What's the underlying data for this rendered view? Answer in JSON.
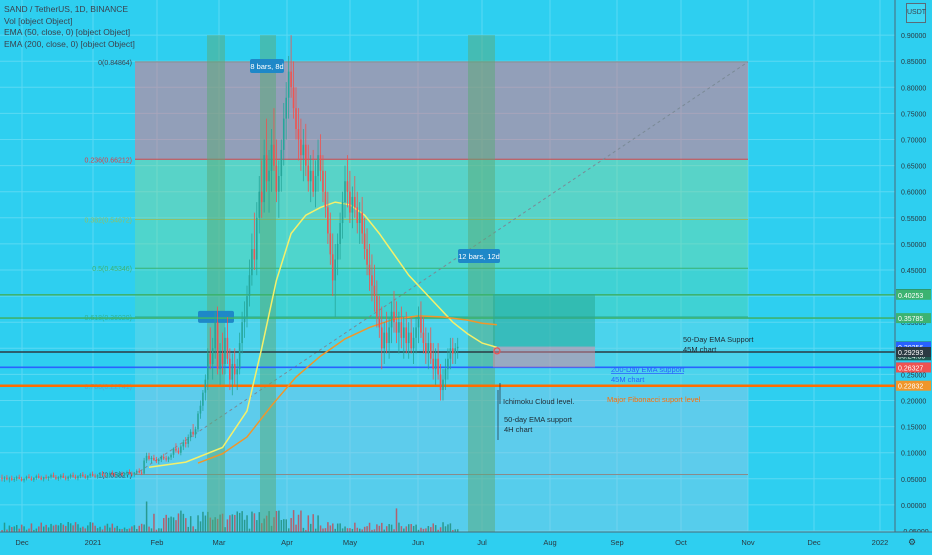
{
  "header": {
    "symbol_line": "SAND / TetherUS, 1D, BINANCE",
    "vol_line": "Vol [object Object]",
    "ema50_line": "EMA (50, close, 0) [object Object]",
    "ema200_line": "EMA (200, close, 0) [object Object]",
    "currency": "USDT"
  },
  "colors": {
    "background": "#2ecff0",
    "grid": "#5bd9f3",
    "candle_up": "#26a69a",
    "candle_down": "#ef5350",
    "ema50": "#f5f06a",
    "ema200": "#f0962a",
    "fib_red": "#d9414a",
    "fib_green": "#3cb371",
    "blue_line": "#2962ff",
    "orange_line": "#ff6d00",
    "dark_line": "#2b3a42"
  },
  "chart_data": {
    "type": "candlestick",
    "y_axis": {
      "min": -0.05,
      "max": 0.95,
      "ticks": [
        "0.90000",
        "0.85000",
        "0.80000",
        "0.75000",
        "0.70000",
        "0.65000",
        "0.60000",
        "0.55000",
        "0.50000",
        "0.45000",
        "0.40000",
        "0.35000",
        "0.30000",
        "0.25000",
        "0.20000",
        "0.15000",
        "0.10000",
        "0.05000",
        "0.00000",
        "-0.05000"
      ]
    },
    "x_axis": {
      "labels": [
        "Dec",
        "2021",
        "Feb",
        "Mar",
        "Apr",
        "May",
        "Jun",
        "Jul",
        "Aug",
        "Sep",
        "Oct",
        "Nov",
        "Dec",
        "2022"
      ]
    },
    "price_labels": [
      {
        "value": 0.40387,
        "text": "0.40387",
        "color": "#2a8a5e"
      },
      {
        "value": 0.40253,
        "text": "0.40253",
        "color": "#3cb371"
      },
      {
        "value": 0.35785,
        "text": "0.35785",
        "color": "#3cb371"
      },
      {
        "value": 0.30334,
        "text": "0.30334",
        "color": "#1e5a50"
      },
      {
        "value": 0.2865,
        "text": "06:24:50",
        "color": "#1e5a50"
      },
      {
        "value": 0.30256,
        "text": "0.30256",
        "color": "#2962ff"
      },
      {
        "value": 0.29293,
        "text": "0.29293",
        "color": "#2b3a42"
      },
      {
        "value": 0.26351,
        "text": "0.26351",
        "color": "#2962ff"
      },
      {
        "value": 0.26327,
        "text": "0.26327",
        "color": "#ef5350"
      },
      {
        "value": 0.22832,
        "text": "0.22832",
        "color": "#f0962a"
      }
    ],
    "fib_levels": [
      {
        "ratio_label": "0(0.84864)",
        "value": 0.84864
      },
      {
        "ratio_label": "0.236(0.66212)",
        "value": 0.66212
      },
      {
        "ratio_label": "0.382(0.54672)",
        "value": 0.54672
      },
      {
        "ratio_label": "0.5(0.45346)",
        "value": 0.45346
      },
      {
        "ratio_label": "0.618(0.36020)",
        "value": 0.3602
      },
      {
        "ratio_label": "0.786(0.22741)",
        "value": 0.22741
      },
      {
        "ratio_label": "1(0.05827)",
        "value": 0.05827
      }
    ],
    "horizontal_levels": [
      {
        "value": 0.40253,
        "color": "#3cb371"
      },
      {
        "value": 0.35785,
        "color": "#3cb371"
      },
      {
        "value": 0.29293,
        "color": "#2b3a42"
      },
      {
        "value": 0.26351,
        "color": "#2962ff"
      },
      {
        "value": 0.22832,
        "color": "#ff6d00"
      }
    ],
    "range_labels": [
      {
        "text": "8 bars, 8d"
      },
      {
        "text": "12 bars, 12d"
      }
    ],
    "annotations": [
      {
        "text": "50-Day EMA Support",
        "line2": "45M chart"
      },
      {
        "text": "200-Day EMA support",
        "line2": "45M chart"
      },
      {
        "text": "Major Fibonacci suport level"
      },
      {
        "text": "Ichimoku Cloud level."
      },
      {
        "text": "50-day EMA support",
        "line2": "4H chart"
      }
    ],
    "candles": [
      [
        0.052,
        0.058,
        0.045,
        0.05
      ],
      [
        0.05,
        0.055,
        0.044,
        0.052
      ],
      [
        0.052,
        0.057,
        0.047,
        0.049
      ],
      [
        0.049,
        0.054,
        0.043,
        0.051
      ],
      [
        0.051,
        0.056,
        0.046,
        0.048
      ],
      [
        0.048,
        0.053,
        0.044,
        0.05
      ],
      [
        0.05,
        0.056,
        0.046,
        0.053
      ],
      [
        0.053,
        0.058,
        0.049,
        0.05
      ],
      [
        0.05,
        0.054,
        0.045,
        0.047
      ],
      [
        0.047,
        0.052,
        0.043,
        0.05
      ],
      [
        0.05,
        0.056,
        0.047,
        0.054
      ],
      [
        0.054,
        0.059,
        0.05,
        0.051
      ],
      [
        0.051,
        0.055,
        0.046,
        0.048
      ],
      [
        0.048,
        0.053,
        0.044,
        0.052
      ],
      [
        0.052,
        0.058,
        0.048,
        0.055
      ],
      [
        0.055,
        0.06,
        0.05,
        0.052
      ],
      [
        0.052,
        0.056,
        0.047,
        0.049
      ],
      [
        0.049,
        0.054,
        0.045,
        0.053
      ],
      [
        0.053,
        0.058,
        0.049,
        0.051
      ],
      [
        0.051,
        0.055,
        0.046,
        0.054
      ],
      [
        0.054,
        0.06,
        0.05,
        0.057
      ],
      [
        0.057,
        0.062,
        0.052,
        0.053
      ],
      [
        0.053,
        0.057,
        0.048,
        0.05
      ],
      [
        0.05,
        0.055,
        0.046,
        0.053
      ],
      [
        0.053,
        0.059,
        0.049,
        0.056
      ],
      [
        0.056,
        0.061,
        0.051,
        0.052
      ],
      [
        0.052,
        0.056,
        0.047,
        0.05
      ],
      [
        0.05,
        0.056,
        0.046,
        0.054
      ],
      [
        0.054,
        0.06,
        0.05,
        0.057
      ],
      [
        0.057,
        0.062,
        0.052,
        0.054
      ],
      [
        0.054,
        0.058,
        0.049,
        0.051
      ],
      [
        0.051,
        0.057,
        0.047,
        0.055
      ],
      [
        0.055,
        0.061,
        0.051,
        0.058
      ],
      [
        0.058,
        0.063,
        0.053,
        0.055
      ],
      [
        0.055,
        0.059,
        0.05,
        0.052
      ],
      [
        0.052,
        0.057,
        0.048,
        0.056
      ],
      [
        0.056,
        0.062,
        0.052,
        0.059
      ],
      [
        0.059,
        0.064,
        0.054,
        0.056
      ],
      [
        0.056,
        0.06,
        0.051,
        0.054
      ],
      [
        0.054,
        0.059,
        0.05,
        0.057
      ],
      [
        0.057,
        0.063,
        0.053,
        0.06
      ],
      [
        0.06,
        0.065,
        0.055,
        0.057
      ],
      [
        0.057,
        0.061,
        0.052,
        0.055
      ],
      [
        0.055,
        0.06,
        0.051,
        0.058
      ],
      [
        0.058,
        0.064,
        0.054,
        0.061
      ],
      [
        0.061,
        0.066,
        0.056,
        0.058
      ],
      [
        0.058,
        0.062,
        0.053,
        0.056
      ],
      [
        0.056,
        0.061,
        0.052,
        0.059
      ],
      [
        0.059,
        0.065,
        0.055,
        0.06
      ],
      [
        0.06,
        0.064,
        0.055,
        0.057
      ],
      [
        0.057,
        0.062,
        0.053,
        0.06
      ],
      [
        0.06,
        0.066,
        0.056,
        0.063
      ],
      [
        0.063,
        0.068,
        0.058,
        0.06
      ],
      [
        0.06,
        0.064,
        0.055,
        0.058
      ],
      [
        0.058,
        0.063,
        0.054,
        0.062
      ],
      [
        0.062,
        0.068,
        0.058,
        0.065
      ],
      [
        0.065,
        0.07,
        0.06,
        0.062
      ],
      [
        0.062,
        0.066,
        0.057,
        0.06
      ],
      [
        0.06,
        0.09,
        0.058,
        0.085
      ],
      [
        0.085,
        0.1,
        0.08,
        0.094
      ],
      [
        0.094,
        0.1,
        0.085,
        0.088
      ],
      [
        0.088,
        0.094,
        0.08,
        0.09
      ],
      [
        0.09,
        0.096,
        0.084,
        0.086
      ],
      [
        0.086,
        0.092,
        0.08,
        0.084
      ],
      [
        0.084,
        0.09,
        0.078,
        0.087
      ],
      [
        0.087,
        0.095,
        0.082,
        0.092
      ],
      [
        0.092,
        0.098,
        0.086,
        0.089
      ],
      [
        0.089,
        0.094,
        0.083,
        0.087
      ],
      [
        0.087,
        0.093,
        0.082,
        0.091
      ],
      [
        0.091,
        0.099,
        0.086,
        0.096
      ],
      [
        0.096,
        0.11,
        0.09,
        0.108
      ],
      [
        0.108,
        0.118,
        0.1,
        0.104
      ],
      [
        0.104,
        0.11,
        0.097,
        0.1
      ],
      [
        0.1,
        0.115,
        0.095,
        0.112
      ],
      [
        0.112,
        0.125,
        0.105,
        0.12
      ],
      [
        0.12,
        0.13,
        0.11,
        0.117
      ],
      [
        0.117,
        0.135,
        0.11,
        0.13
      ],
      [
        0.13,
        0.145,
        0.122,
        0.14
      ],
      [
        0.14,
        0.155,
        0.13,
        0.135
      ],
      [
        0.135,
        0.15,
        0.128,
        0.145
      ],
      [
        0.145,
        0.18,
        0.14,
        0.175
      ],
      [
        0.175,
        0.2,
        0.165,
        0.19
      ],
      [
        0.19,
        0.22,
        0.18,
        0.215
      ],
      [
        0.215,
        0.25,
        0.2,
        0.24
      ],
      [
        0.24,
        0.3,
        0.22,
        0.29
      ],
      [
        0.29,
        0.34,
        0.26,
        0.27
      ],
      [
        0.27,
        0.32,
        0.24,
        0.3
      ],
      [
        0.3,
        0.37,
        0.28,
        0.35
      ],
      [
        0.35,
        0.38,
        0.25,
        0.26
      ],
      [
        0.26,
        0.31,
        0.23,
        0.29
      ],
      [
        0.29,
        0.33,
        0.25,
        0.27
      ],
      [
        0.27,
        0.34,
        0.25,
        0.32
      ],
      [
        0.32,
        0.36,
        0.27,
        0.28
      ],
      [
        0.28,
        0.3,
        0.22,
        0.24
      ],
      [
        0.24,
        0.29,
        0.21,
        0.27
      ],
      [
        0.27,
        0.3,
        0.23,
        0.25
      ],
      [
        0.25,
        0.28,
        0.22,
        0.26
      ],
      [
        0.26,
        0.33,
        0.25,
        0.31
      ],
      [
        0.31,
        0.37,
        0.29,
        0.35
      ],
      [
        0.35,
        0.39,
        0.32,
        0.36
      ],
      [
        0.36,
        0.42,
        0.34,
        0.4
      ],
      [
        0.4,
        0.47,
        0.38,
        0.44
      ],
      [
        0.44,
        0.52,
        0.42,
        0.49
      ],
      [
        0.49,
        0.56,
        0.45,
        0.47
      ],
      [
        0.47,
        0.58,
        0.44,
        0.55
      ],
      [
        0.55,
        0.63,
        0.52,
        0.6
      ],
      [
        0.6,
        0.66,
        0.55,
        0.58
      ],
      [
        0.58,
        0.7,
        0.56,
        0.67
      ],
      [
        0.67,
        0.74,
        0.6,
        0.62
      ],
      [
        0.62,
        0.68,
        0.56,
        0.64
      ],
      [
        0.64,
        0.72,
        0.6,
        0.69
      ],
      [
        0.69,
        0.76,
        0.64,
        0.65
      ],
      [
        0.65,
        0.7,
        0.58,
        0.6
      ],
      [
        0.6,
        0.66,
        0.55,
        0.63
      ],
      [
        0.63,
        0.7,
        0.6,
        0.68
      ],
      [
        0.68,
        0.77,
        0.65,
        0.74
      ],
      [
        0.74,
        0.81,
        0.7,
        0.78
      ],
      [
        0.78,
        0.86,
        0.74,
        0.83
      ],
      [
        0.83,
        0.9,
        0.78,
        0.8
      ],
      [
        0.8,
        0.85,
        0.74,
        0.76
      ],
      [
        0.76,
        0.8,
        0.7,
        0.72
      ],
      [
        0.72,
        0.76,
        0.66,
        0.7
      ],
      [
        0.7,
        0.74,
        0.64,
        0.67
      ],
      [
        0.67,
        0.72,
        0.62,
        0.69
      ],
      [
        0.69,
        0.73,
        0.63,
        0.65
      ],
      [
        0.65,
        0.69,
        0.6,
        0.62
      ],
      [
        0.62,
        0.67,
        0.58,
        0.64
      ],
      [
        0.64,
        0.68,
        0.59,
        0.6
      ],
      [
        0.6,
        0.66,
        0.57,
        0.63
      ],
      [
        0.63,
        0.7,
        0.6,
        0.67
      ],
      [
        0.67,
        0.71,
        0.62,
        0.64
      ],
      [
        0.64,
        0.67,
        0.58,
        0.6
      ],
      [
        0.6,
        0.64,
        0.55,
        0.57
      ],
      [
        0.57,
        0.6,
        0.5,
        0.52
      ],
      [
        0.52,
        0.56,
        0.46,
        0.48
      ],
      [
        0.48,
        0.52,
        0.4,
        0.43
      ],
      [
        0.43,
        0.5,
        0.36,
        0.47
      ],
      [
        0.47,
        0.52,
        0.44,
        0.5
      ],
      [
        0.5,
        0.56,
        0.47,
        0.54
      ],
      [
        0.54,
        0.6,
        0.51,
        0.58
      ],
      [
        0.58,
        0.65,
        0.55,
        0.62
      ],
      [
        0.62,
        0.67,
        0.57,
        0.6
      ],
      [
        0.6,
        0.64,
        0.54,
        0.56
      ],
      [
        0.56,
        0.61,
        0.53,
        0.59
      ],
      [
        0.59,
        0.63,
        0.55,
        0.57
      ],
      [
        0.57,
        0.6,
        0.52,
        0.54
      ],
      [
        0.54,
        0.58,
        0.5,
        0.56
      ],
      [
        0.56,
        0.59,
        0.5,
        0.52
      ],
      [
        0.52,
        0.55,
        0.47,
        0.49
      ],
      [
        0.49,
        0.53,
        0.44,
        0.46
      ],
      [
        0.46,
        0.5,
        0.41,
        0.44
      ],
      [
        0.44,
        0.48,
        0.39,
        0.42
      ],
      [
        0.42,
        0.46,
        0.37,
        0.4
      ],
      [
        0.4,
        0.43,
        0.34,
        0.36
      ],
      [
        0.36,
        0.4,
        0.32,
        0.34
      ],
      [
        0.34,
        0.38,
        0.26,
        0.3
      ],
      [
        0.3,
        0.35,
        0.27,
        0.33
      ],
      [
        0.33,
        0.37,
        0.29,
        0.31
      ],
      [
        0.31,
        0.36,
        0.28,
        0.34
      ],
      [
        0.34,
        0.39,
        0.31,
        0.37
      ],
      [
        0.37,
        0.41,
        0.33,
        0.35
      ],
      [
        0.35,
        0.39,
        0.31,
        0.33
      ],
      [
        0.33,
        0.37,
        0.29,
        0.35
      ],
      [
        0.35,
        0.38,
        0.3,
        0.32
      ],
      [
        0.32,
        0.36,
        0.28,
        0.34
      ],
      [
        0.34,
        0.37,
        0.29,
        0.31
      ],
      [
        0.31,
        0.35,
        0.28,
        0.33
      ],
      [
        0.33,
        0.36,
        0.29,
        0.3
      ],
      [
        0.3,
        0.34,
        0.27,
        0.32
      ],
      [
        0.32,
        0.36,
        0.29,
        0.34
      ],
      [
        0.34,
        0.38,
        0.31,
        0.36
      ],
      [
        0.36,
        0.39,
        0.32,
        0.33
      ],
      [
        0.33,
        0.36,
        0.29,
        0.31
      ],
      [
        0.31,
        0.34,
        0.27,
        0.29
      ],
      [
        0.29,
        0.33,
        0.26,
        0.31
      ],
      [
        0.31,
        0.34,
        0.27,
        0.28
      ],
      [
        0.28,
        0.31,
        0.24,
        0.26
      ],
      [
        0.26,
        0.3,
        0.23,
        0.28
      ],
      [
        0.28,
        0.31,
        0.24,
        0.25
      ],
      [
        0.25,
        0.27,
        0.2,
        0.22
      ],
      [
        0.22,
        0.26,
        0.2,
        0.24
      ],
      [
        0.24,
        0.28,
        0.22,
        0.26
      ],
      [
        0.26,
        0.3,
        0.24,
        0.28
      ],
      [
        0.28,
        0.32,
        0.26,
        0.3
      ],
      [
        0.3,
        0.32,
        0.27,
        0.29
      ],
      [
        0.29,
        0.31,
        0.27,
        0.3
      ],
      [
        0.3,
        0.32,
        0.28,
        0.303
      ]
    ],
    "ema50": [
      [
        60,
        0.072
      ],
      [
        75,
        0.082
      ],
      [
        90,
        0.11
      ],
      [
        100,
        0.18
      ],
      [
        106,
        0.3
      ],
      [
        112,
        0.43
      ],
      [
        118,
        0.52
      ],
      [
        124,
        0.555
      ],
      [
        130,
        0.57
      ],
      [
        136,
        0.58
      ],
      [
        142,
        0.575
      ],
      [
        148,
        0.555
      ],
      [
        154,
        0.52
      ],
      [
        160,
        0.48
      ],
      [
        166,
        0.44
      ],
      [
        172,
        0.41
      ],
      [
        178,
        0.38
      ],
      [
        184,
        0.35
      ],
      [
        190,
        0.328
      ],
      [
        196,
        0.31
      ],
      [
        202,
        0.302
      ]
    ],
    "ema200": [
      [
        80,
        0.08
      ],
      [
        90,
        0.098
      ],
      [
        100,
        0.13
      ],
      [
        110,
        0.19
      ],
      [
        120,
        0.245
      ],
      [
        130,
        0.285
      ],
      [
        140,
        0.318
      ],
      [
        150,
        0.34
      ],
      [
        160,
        0.356
      ],
      [
        170,
        0.362
      ],
      [
        180,
        0.36
      ],
      [
        190,
        0.354
      ],
      [
        196,
        0.348
      ],
      [
        202,
        0.345
      ]
    ]
  }
}
